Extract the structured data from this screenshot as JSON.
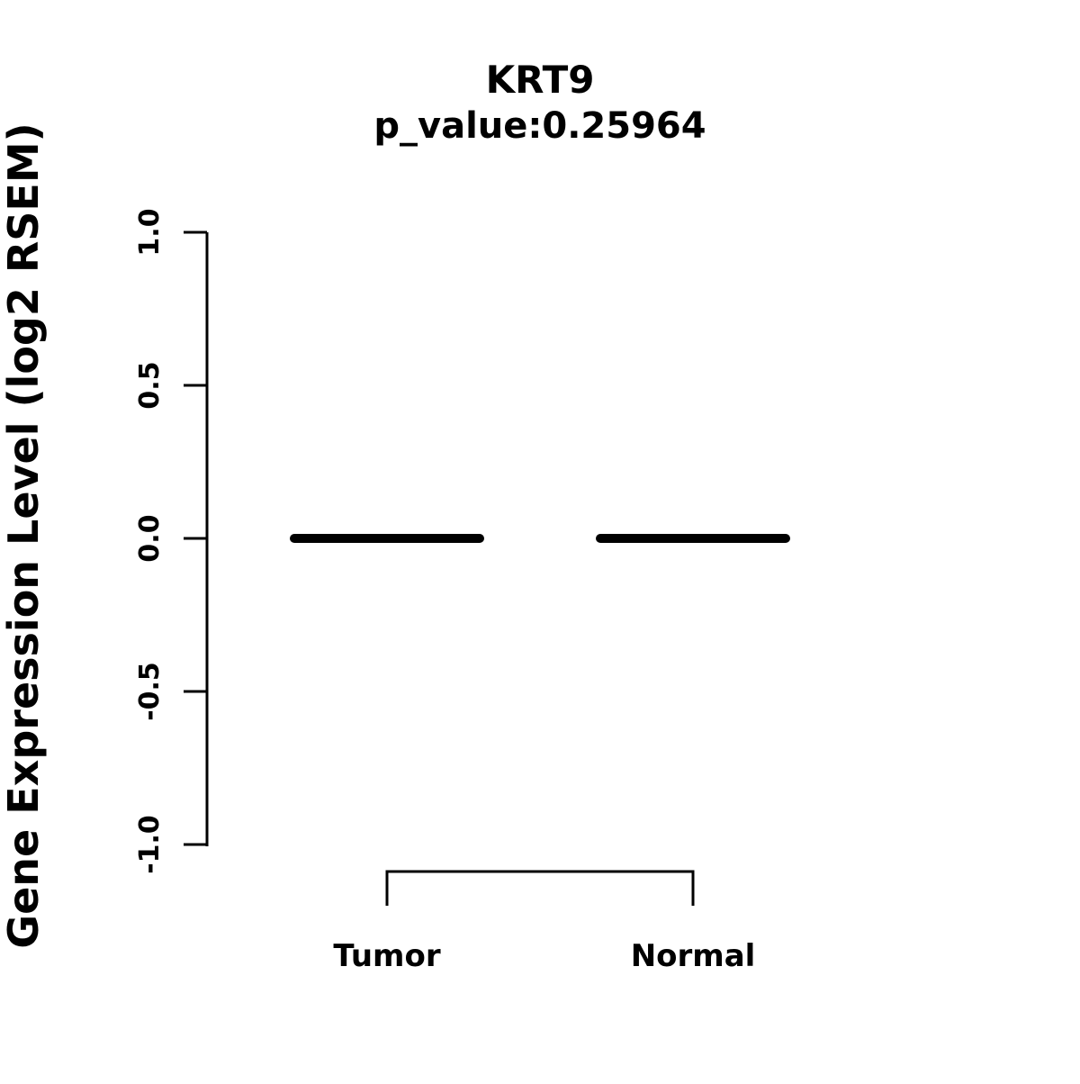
{
  "chart_data": {
    "type": "boxplot",
    "title": "KRT9",
    "subtitle": "p_value:0.25964",
    "ylabel": "Gene Expression Level (log2 RSEM)",
    "categories": [
      "Tumor",
      "Normal"
    ],
    "series": [
      {
        "name": "median",
        "values": [
          0.0,
          0.0
        ]
      }
    ],
    "ylim": [
      -1.0,
      1.0
    ],
    "yticks": [
      1.0,
      0.5,
      0.0,
      -0.5,
      -1.0
    ],
    "ytick_labels": [
      "1.0",
      "0.5",
      "0.0",
      "-0.5",
      "-1.0"
    ],
    "grid": false,
    "legend": "none",
    "comparison_bracket": true,
    "line_color": "#000000",
    "background_color": "#ffffff"
  }
}
